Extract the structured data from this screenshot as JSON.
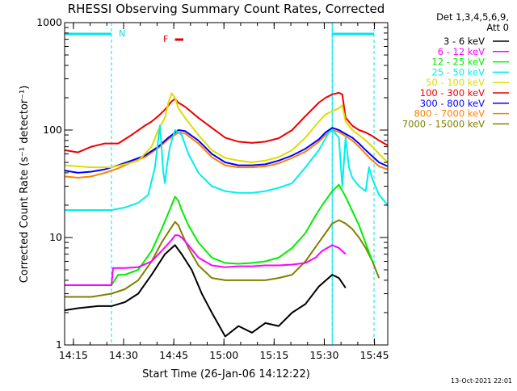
{
  "chart_data": {
    "type": "line",
    "title": "RHESSI Observing Summary Count Rates, Corrected",
    "xlabel": "Start Time (26-Jan-06 14:12:22)",
    "ylabel": "Corrected Count Rate (s⁻¹ detector⁻¹)",
    "y_scale": "log",
    "ylim": [
      1,
      1000
    ],
    "xlim_minutes": [
      0,
      96.6
    ],
    "x_ticks": [
      {
        "minute": 2.63,
        "label": "14:15"
      },
      {
        "minute": 17.63,
        "label": "14:30"
      },
      {
        "minute": 32.63,
        "label": "14:45"
      },
      {
        "minute": 47.63,
        "label": "15:00"
      },
      {
        "minute": 62.63,
        "label": "15:15"
      },
      {
        "minute": 77.63,
        "label": "15:30"
      },
      {
        "minute": 92.63,
        "label": "15:45"
      }
    ],
    "y_ticks": [
      {
        "value": 1,
        "label": "1"
      },
      {
        "value": 10,
        "label": "10"
      },
      {
        "value": 100,
        "label": "100"
      },
      {
        "value": 1000,
        "label": "1000"
      }
    ],
    "legend_header": [
      "Det 1,3,4,5,6,9,",
      "Att 0"
    ],
    "legend_position": "right",
    "annotations": [
      {
        "text": "N",
        "color": "#00e5ee"
      },
      {
        "text": "F",
        "color": "#dd0000"
      }
    ],
    "footer_date": "13-Oct-2021 22:01",
    "night_intervals_minutes": [
      [
        0,
        14
      ],
      [
        80,
        92.5
      ]
    ],
    "flare_flag_minutes": [
      33,
      35.5
    ],
    "series": [
      {
        "name": "3 - 6 keV",
        "color": "#000000",
        "x": [
          0,
          4,
          10,
          14,
          18,
          22,
          26,
          30,
          33,
          35,
          38,
          41,
          44,
          48,
          52,
          56,
          60,
          64,
          68,
          72,
          76,
          80,
          82,
          84
        ],
        "y": [
          2.1,
          2.2,
          2.3,
          2.3,
          2.5,
          3,
          4.5,
          7,
          8.5,
          7,
          5,
          3,
          2,
          1.2,
          1.5,
          1.3,
          1.6,
          1.5,
          2,
          2.4,
          3.5,
          4.5,
          4.2,
          3.4
        ]
      },
      {
        "name": "6 - 12 keV",
        "color": "#ff00ff",
        "x": [
          0,
          14,
          14.5,
          18,
          22,
          26,
          29,
          32,
          33,
          34,
          35,
          37,
          40,
          44,
          48,
          52,
          56,
          60,
          64,
          68,
          72,
          75,
          77,
          80,
          82,
          84
        ],
        "y": [
          3.6,
          3.6,
          5.2,
          5.2,
          5.3,
          6,
          7.5,
          9.5,
          10.5,
          10.5,
          10,
          8.5,
          6.5,
          5.5,
          5.3,
          5.4,
          5.4,
          5.5,
          5.5,
          5.6,
          5.8,
          6.5,
          7.5,
          8.5,
          8,
          7
        ]
      },
      {
        "name": "12 - 25 keV",
        "color": "#00ee00",
        "x": [
          0,
          14,
          16,
          18,
          22,
          26,
          29,
          32,
          33,
          34,
          35,
          37,
          40,
          44,
          48,
          52,
          56,
          60,
          64,
          68,
          72,
          75,
          77,
          80,
          82,
          84,
          88,
          92
        ],
        "y": [
          3.6,
          3.6,
          4.5,
          4.5,
          5,
          7.5,
          12,
          20,
          24,
          22,
          18,
          13,
          9,
          6.5,
          5.8,
          5.7,
          5.8,
          6,
          6.5,
          8,
          11,
          16,
          20,
          27,
          31,
          24,
          13,
          6
        ]
      },
      {
        "name": "25 - 50 keV",
        "color": "#00eeee",
        "x": [
          0,
          8,
          14,
          18,
          22,
          25,
          27,
          28.5,
          29.5,
          30,
          30.5,
          31.5,
          33,
          35,
          37,
          40,
          44,
          48,
          52,
          56,
          60,
          64,
          68,
          72,
          76,
          79,
          80,
          82,
          83,
          84,
          85,
          86,
          88,
          90,
          91,
          92,
          94,
          96.6
        ],
        "y": [
          18,
          18,
          18,
          19,
          21,
          25,
          45,
          110,
          40,
          32,
          45,
          70,
          100,
          90,
          60,
          40,
          30,
          27,
          26,
          26,
          27,
          29,
          32,
          45,
          65,
          95,
          100,
          85,
          30,
          85,
          45,
          36,
          30,
          27,
          45,
          35,
          25,
          20
        ]
      },
      {
        "name": "50 - 100 keV",
        "color": "#dddd00",
        "x": [
          0,
          4,
          8,
          14,
          18,
          22,
          26,
          28,
          30,
          31,
          32,
          33,
          34,
          36,
          40,
          44,
          48,
          52,
          56,
          60,
          64,
          68,
          72,
          76,
          78,
          80,
          81,
          82,
          83,
          84,
          86,
          88,
          90,
          92,
          94,
          96.6
        ],
        "y": [
          47,
          46,
          45,
          45,
          48,
          52,
          70,
          100,
          130,
          180,
          220,
          200,
          160,
          130,
          90,
          65,
          55,
          52,
          50,
          52,
          56,
          65,
          85,
          120,
          140,
          150,
          155,
          160,
          170,
          120,
          100,
          90,
          80,
          70,
          60,
          50
        ]
      },
      {
        "name": "100 - 300 keV",
        "color": "#ee0000",
        "x": [
          0,
          4,
          8,
          12,
          16,
          20,
          24,
          26,
          28,
          30,
          32,
          33,
          34,
          36,
          40,
          44,
          48,
          52,
          56,
          60,
          64,
          68,
          72,
          76,
          78,
          80,
          82,
          83,
          84,
          86,
          88,
          90,
          92,
          94,
          96.6
        ],
        "y": [
          65,
          62,
          70,
          75,
          75,
          90,
          110,
          120,
          135,
          155,
          185,
          195,
          180,
          165,
          130,
          105,
          85,
          78,
          76,
          78,
          84,
          100,
          135,
          180,
          200,
          215,
          222,
          215,
          130,
          110,
          100,
          95,
          88,
          80,
          72
        ]
      },
      {
        "name": "300 - 800 keV",
        "color": "#0000ff",
        "x": [
          0,
          4,
          8,
          12,
          16,
          20,
          24,
          28,
          31,
          34,
          36,
          40,
          44,
          48,
          52,
          56,
          60,
          64,
          68,
          72,
          76,
          78,
          80,
          82,
          84,
          86,
          88,
          90,
          92,
          94,
          96.6
        ],
        "y": [
          42,
          40,
          41,
          43,
          47,
          52,
          58,
          70,
          85,
          100,
          98,
          80,
          60,
          50,
          47,
          47,
          48,
          52,
          58,
          67,
          82,
          95,
          105,
          100,
          92,
          85,
          75,
          65,
          57,
          50,
          46
        ]
      },
      {
        "name": "800 - 7000 keV",
        "color": "#ff8000",
        "x": [
          0,
          4,
          8,
          12,
          16,
          20,
          24,
          28,
          31,
          34,
          36,
          40,
          44,
          48,
          52,
          56,
          60,
          64,
          68,
          72,
          76,
          78,
          80,
          82,
          84,
          86,
          88,
          90,
          92,
          94,
          96.6
        ],
        "y": [
          37,
          36,
          37,
          40,
          44,
          50,
          56,
          68,
          82,
          95,
          93,
          75,
          56,
          47,
          45,
          45,
          46,
          49,
          55,
          63,
          78,
          90,
          100,
          96,
          88,
          80,
          70,
          60,
          52,
          46,
          43
        ]
      },
      {
        "name": "7000 - 15000 keV",
        "color": "#808000",
        "x": [
          0,
          8,
          14,
          18,
          22,
          26,
          29,
          32,
          33,
          34,
          35,
          37,
          40,
          44,
          48,
          52,
          56,
          60,
          64,
          68,
          72,
          76,
          78,
          80,
          82,
          84,
          86,
          88,
          90,
          92,
          94
        ],
        "y": [
          2.8,
          2.8,
          3,
          3.3,
          4,
          6,
          9,
          12.5,
          14,
          13,
          11,
          8,
          5.5,
          4.2,
          4,
          4,
          4,
          4,
          4.2,
          4.5,
          6,
          9,
          11,
          13.5,
          14.5,
          13.5,
          12,
          10,
          8,
          6,
          4.2
        ]
      }
    ]
  }
}
